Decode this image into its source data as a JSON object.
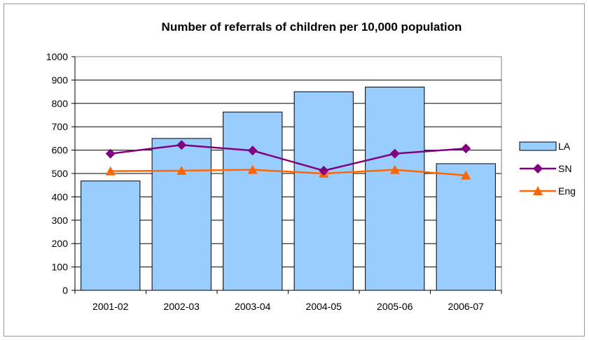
{
  "chart_data": {
    "type": "bar",
    "title": "Number of referrals of children per 10,000 population",
    "categories": [
      "2001-02",
      "2002-03",
      "2003-04",
      "2004-05",
      "2005-06",
      "2006-07"
    ],
    "ylim": [
      0,
      1000
    ],
    "yticks": [
      0,
      100,
      200,
      300,
      400,
      500,
      600,
      700,
      800,
      900,
      1000
    ],
    "grid": true,
    "legend_position": "right",
    "series": [
      {
        "name": "LA",
        "kind": "bar",
        "color": "#99ccff",
        "values": [
          468,
          650,
          763,
          850,
          870,
          542
        ]
      },
      {
        "name": "SN",
        "kind": "line",
        "marker": "diamond",
        "color": "#800080",
        "values": [
          585,
          622,
          598,
          512,
          585,
          607
        ]
      },
      {
        "name": "Eng",
        "kind": "line",
        "marker": "triangle",
        "color": "#ff6600",
        "values": [
          510,
          512,
          516,
          500,
          516,
          492
        ]
      }
    ]
  }
}
